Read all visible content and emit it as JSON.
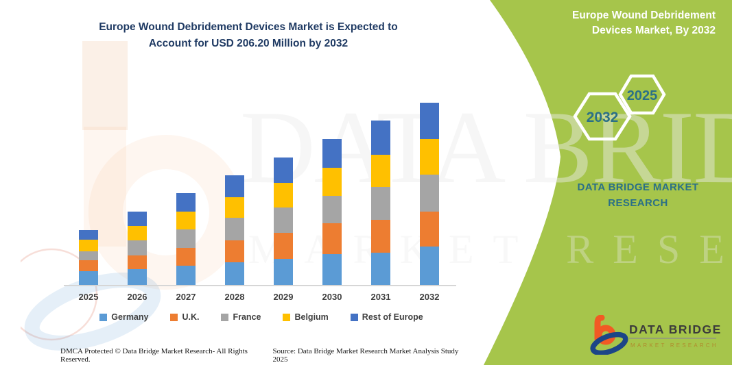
{
  "page_title": {
    "line1": "Europe Wound Debridement Devices Market is Expected to",
    "line2": "Account for USD 206.20 Million by 2032"
  },
  "right_panel": {
    "heading_line1": "Europe Wound Debridement",
    "heading_line2": "Devices Market, By 2032",
    "hexagons": [
      {
        "label": "2032"
      },
      {
        "label": "2025"
      }
    ],
    "brand_line1": "DATA BRIDGE MARKET",
    "brand_line2": "RESEARCH",
    "logo": {
      "name": "DATA BRIDGE",
      "subtitle": "MARKET RESEARCH"
    }
  },
  "watermark": {
    "line1": "DATA BRIDGE",
    "line2": "MARKET RESEARCH"
  },
  "footer": {
    "left": "DMCA Protected © Data Bridge Market Research-  All Rights Reserved.",
    "right": "Source: Data Bridge Market Research  Market Analysis Study 2025"
  },
  "colors": {
    "accent_green": "#A6C54B",
    "teal": "#2B7086",
    "title_navy": "#1F3A63",
    "axis_gray": "#D6D6D6",
    "label_gray": "#3F3F3F"
  },
  "chart_data": {
    "type": "bar",
    "stacked": true,
    "title": "Europe Wound Debridement Devices Market is Expected to Account for USD 206.20 Million by 2032",
    "unit": "USD Million",
    "total_2032": 206.2,
    "legend_position": "bottom",
    "grid": false,
    "categories": [
      "2025",
      "2026",
      "2027",
      "2028",
      "2029",
      "2030",
      "2031",
      "2032"
    ],
    "series": [
      {
        "name": "Germany",
        "color": "#5B9BD5",
        "values": [
          15.4,
          18.0,
          21.9,
          25.8,
          29.3,
          34.5,
          36.1,
          43.3
        ]
      },
      {
        "name": "U.K.",
        "color": "#ED7D31",
        "values": [
          12.4,
          15.5,
          19.9,
          24.5,
          29.5,
          34.9,
          37.5,
          39.3
        ]
      },
      {
        "name": "France",
        "color": "#A5A5A5",
        "values": [
          10.1,
          16.8,
          20.7,
          25.9,
          28.7,
          31.0,
          37.5,
          41.9
        ]
      },
      {
        "name": "Belgium",
        "color": "#FFC000",
        "values": [
          13.0,
          16.3,
          20.2,
          23.3,
          28.2,
          31.8,
          36.2,
          40.9
        ]
      },
      {
        "name": "Rest of Europe",
        "color": "#4472C4",
        "values": [
          11.1,
          16.1,
          21.2,
          24.5,
          28.5,
          33.0,
          38.8,
          40.8
        ]
      }
    ],
    "totals_by_year": [
      62.0,
      82.7,
      103.9,
      124.0,
      144.2,
      165.2,
      186.1,
      206.2
    ]
  }
}
